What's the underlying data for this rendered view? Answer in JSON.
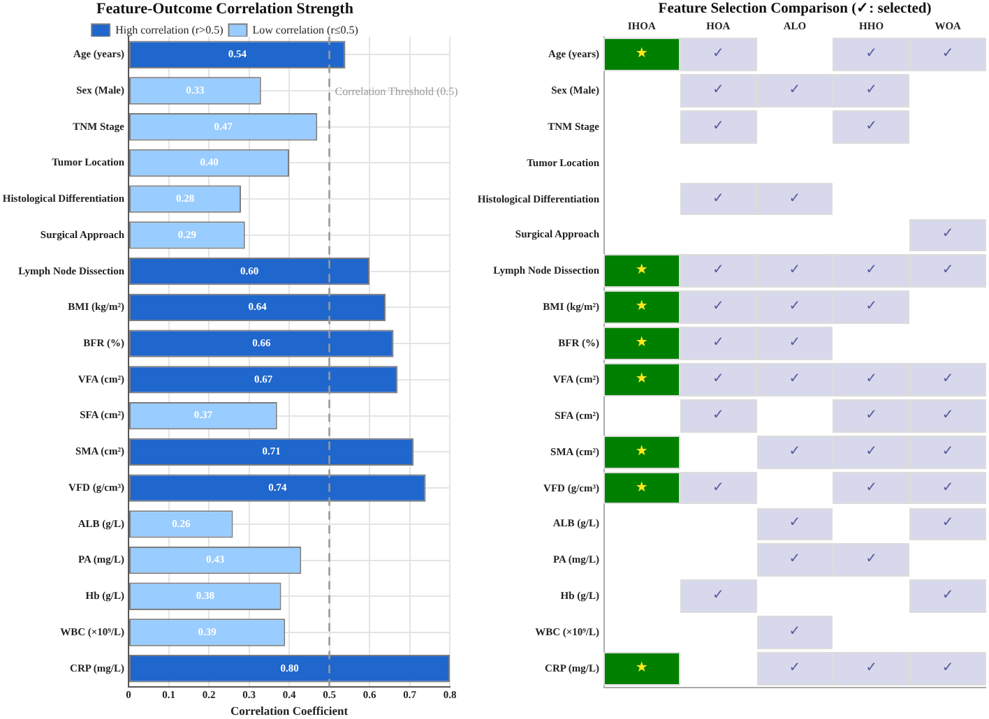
{
  "chart_data": [
    {
      "type": "bar",
      "orientation": "horizontal",
      "title": "Feature-Outcome Correlation Strength",
      "xlabel": "Correlation Coefficient",
      "categories": [
        "Age (years)",
        "Sex (Male)",
        "TNM Stage",
        "Tumor Location",
        "Histological Differentiation",
        "Surgical Approach",
        "Lymph Node Dissection",
        "BMI (kg/m²)",
        "BFR (%)",
        "VFA (cm²)",
        "SFA (cm²)",
        "SMA (cm²)",
        "VFD (g/cm³)",
        "ALB (g/L)",
        "PA (mg/L)",
        "Hb (g/L)",
        "WBC (×10⁹/L)",
        "CRP (mg/L)"
      ],
      "series": [
        {
          "name": "High correlation (r>0.5)",
          "color": "#1f66cd",
          "values": [
            0.54,
            null,
            null,
            null,
            null,
            null,
            0.6,
            0.64,
            0.66,
            0.67,
            null,
            0.71,
            0.74,
            null,
            null,
            null,
            null,
            0.8
          ],
          "value_labels": [
            "0.54",
            null,
            null,
            null,
            null,
            null,
            "0.60",
            "0.64",
            "0.66",
            "0.67",
            null,
            "0.71",
            "0.74",
            null,
            null,
            null,
            null,
            "0.80"
          ]
        },
        {
          "name": "Low correlation (r≤0.5)",
          "color": "#99ccff",
          "values": [
            null,
            0.33,
            0.47,
            0.4,
            0.28,
            0.29,
            null,
            null,
            null,
            null,
            0.37,
            null,
            null,
            0.26,
            0.43,
            0.38,
            0.39,
            null
          ],
          "value_labels": [
            null,
            "0.33",
            "0.47",
            "0.40",
            "0.28",
            "0.29",
            null,
            null,
            null,
            null,
            "0.37",
            null,
            null,
            "0.26",
            "0.43",
            "0.38",
            "0.39",
            null
          ]
        }
      ],
      "xlim": [
        0,
        0.8
      ],
      "xticks": [
        0,
        0.1,
        0.2,
        0.3,
        0.4,
        0.5,
        0.6,
        0.7,
        0.8
      ],
      "grid": true,
      "legend": "top",
      "ref_lines": [
        {
          "axis": "x",
          "value": 0.5,
          "label": "Correlation Threshold (0.5)",
          "color": "#9a9a9a",
          "line_style": "dashed"
        }
      ]
    },
    {
      "type": "other",
      "title": "Feature Selection Comparison (✓: selected)",
      "categories": [
        "IHOA",
        "HOA",
        "ALO",
        "HHO",
        "WOA"
      ],
      "y_categories": [
        "Age (years)",
        "Sex (Male)",
        "TNM Stage",
        "Tumor Location",
        "Histological Differentiation",
        "Surgical Approach",
        "Lymph Node Dissection",
        "BMI (kg/m²)",
        "BFR (%)",
        "VFA (cm²)",
        "SFA (cm²)",
        "SMA (cm²)",
        "VFD (g/cm³)",
        "ALB (g/L)",
        "PA (mg/L)",
        "Hb (g/L)",
        "WBC (×10⁹/L)",
        "CRP (mg/L)"
      ],
      "cell_labels": [
        [
          "★",
          "✓",
          null,
          "✓",
          "✓"
        ],
        [
          null,
          "✓",
          "✓",
          "✓",
          null
        ],
        [
          null,
          "✓",
          null,
          "✓",
          null
        ],
        [
          null,
          null,
          null,
          null,
          null
        ],
        [
          null,
          "✓",
          "✓",
          null,
          null
        ],
        [
          null,
          null,
          null,
          null,
          "✓"
        ],
        [
          "★",
          "✓",
          "✓",
          "✓",
          "✓"
        ],
        [
          "★",
          "✓",
          "✓",
          "✓",
          null
        ],
        [
          "★",
          "✓",
          "✓",
          null,
          null
        ],
        [
          "★",
          "✓",
          "✓",
          "✓",
          "✓"
        ],
        [
          null,
          "✓",
          null,
          "✓",
          "✓"
        ],
        [
          "★",
          null,
          "✓",
          "✓",
          "✓"
        ],
        [
          "★",
          "✓",
          null,
          "✓",
          "✓"
        ],
        [
          null,
          null,
          "✓",
          null,
          "✓"
        ],
        [
          null,
          null,
          "✓",
          "✓",
          null
        ],
        [
          null,
          "✓",
          null,
          null,
          "✓"
        ],
        [
          null,
          null,
          "✓",
          null,
          null
        ],
        [
          "★",
          null,
          "✓",
          "✓",
          "✓"
        ]
      ],
      "colors": [
        [
          "#008000",
          "#d8d8ec",
          "#ffffff",
          "#d8d8ec",
          "#d8d8ec"
        ],
        [
          "#ffffff",
          "#d8d8ec",
          "#d8d8ec",
          "#d8d8ec",
          "#ffffff"
        ],
        [
          "#ffffff",
          "#d8d8ec",
          "#ffffff",
          "#d8d8ec",
          "#ffffff"
        ],
        [
          "#ffffff",
          "#ffffff",
          "#ffffff",
          "#ffffff",
          "#ffffff"
        ],
        [
          "#ffffff",
          "#d8d8ec",
          "#d8d8ec",
          "#ffffff",
          "#ffffff"
        ],
        [
          "#ffffff",
          "#ffffff",
          "#ffffff",
          "#ffffff",
          "#d8d8ec"
        ],
        [
          "#008000",
          "#d8d8ec",
          "#d8d8ec",
          "#d8d8ec",
          "#d8d8ec"
        ],
        [
          "#008000",
          "#d8d8ec",
          "#d8d8ec",
          "#d8d8ec",
          "#ffffff"
        ],
        [
          "#008000",
          "#d8d8ec",
          "#d8d8ec",
          "#ffffff",
          "#ffffff"
        ],
        [
          "#008000",
          "#d8d8ec",
          "#d8d8ec",
          "#d8d8ec",
          "#d8d8ec"
        ],
        [
          "#ffffff",
          "#d8d8ec",
          "#ffffff",
          "#d8d8ec",
          "#d8d8ec"
        ],
        [
          "#008000",
          "#ffffff",
          "#d8d8ec",
          "#d8d8ec",
          "#d8d8ec"
        ],
        [
          "#008000",
          "#d8d8ec",
          "#ffffff",
          "#d8d8ec",
          "#d8d8ec"
        ],
        [
          "#ffffff",
          "#ffffff",
          "#d8d8ec",
          "#ffffff",
          "#d8d8ec"
        ],
        [
          "#ffffff",
          "#ffffff",
          "#d8d8ec",
          "#d8d8ec",
          "#ffffff"
        ],
        [
          "#ffffff",
          "#d8d8ec",
          "#ffffff",
          "#ffffff",
          "#d8d8ec"
        ],
        [
          "#ffffff",
          "#ffffff",
          "#d8d8ec",
          "#ffffff",
          "#ffffff"
        ],
        [
          "#008000",
          "#ffffff",
          "#d8d8ec",
          "#d8d8ec",
          "#d8d8ec"
        ]
      ]
    }
  ]
}
